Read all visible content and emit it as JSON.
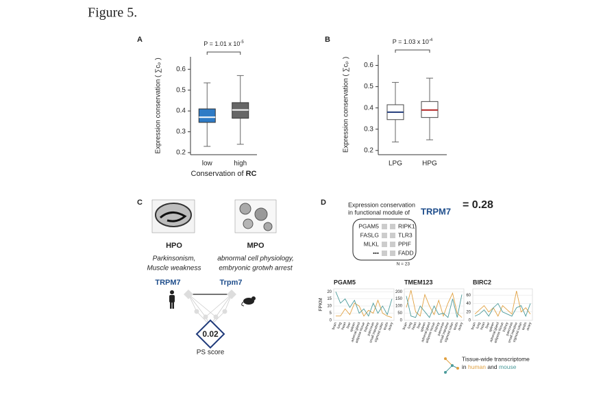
{
  "figure_title": "Figure 5.",
  "chart_data": [
    {
      "type": "box",
      "panel_label": "A",
      "ylabel": "Expression conservation ( ∑cₚ )",
      "xlabel": "Conservation of",
      "xlabel_bold": "RC",
      "annotation": {
        "text": "P = 1.01 x 10",
        "exponent": "-5"
      },
      "categories": [
        "low",
        "high"
      ],
      "boxes": [
        {
          "min": 0.23,
          "q1": 0.345,
          "median": 0.37,
          "q3": 0.41,
          "max": 0.535
        },
        {
          "min": 0.24,
          "q1": 0.365,
          "median": 0.405,
          "q3": 0.44,
          "max": 0.57
        }
      ],
      "box_colors": [
        "#2e7bc6",
        "#666666"
      ],
      "median_colors": [
        "#ffffff",
        "#ffffff"
      ],
      "edge_color": "#333333",
      "ylim": [
        0.19,
        0.66
      ],
      "yticks": [
        0.2,
        0.3,
        0.4,
        0.5,
        0.6
      ]
    },
    {
      "type": "box",
      "panel_label": "B",
      "ylabel": "Expression conservation ( ∑cₚ )",
      "annotation": {
        "text": "P = 1.03 x 10",
        "exponent": "-4"
      },
      "categories": [
        "LPG",
        "HPG"
      ],
      "boxes": [
        {
          "min": 0.24,
          "q1": 0.345,
          "median": 0.38,
          "q3": 0.415,
          "max": 0.52
        },
        {
          "min": 0.25,
          "q1": 0.355,
          "median": 0.39,
          "q3": 0.43,
          "max": 0.54
        }
      ],
      "box_colors": [
        "#ffffff",
        "#ffffff"
      ],
      "median_colors": [
        "#1f3a7a",
        "#b22222"
      ],
      "edge_color": "#444444",
      "ylim": [
        0.18,
        0.65
      ],
      "yticks": [
        0.2,
        0.3,
        0.4,
        0.5,
        0.6
      ]
    },
    {
      "type": "line",
      "title": "PGAM5",
      "ylabel": "FPKM",
      "categories": [
        "brain",
        "lung",
        "heart",
        "liver",
        "spleen",
        "adrenal gland",
        "adipose tissue",
        "kidney",
        "pancreas",
        "small intestine",
        "sigmoid colon",
        "testis",
        "ovary"
      ],
      "series": [
        {
          "name": "human",
          "color": "#e0a040",
          "values": [
            3,
            3,
            8,
            4,
            12,
            10,
            3,
            7,
            5,
            14,
            5,
            3,
            2
          ]
        },
        {
          "name": "mouse",
          "color": "#4a9a9a",
          "values": [
            20,
            12,
            15,
            9,
            14,
            5,
            8,
            3,
            12,
            5,
            10,
            4,
            15
          ]
        }
      ],
      "ylim": [
        0,
        22
      ],
      "yticks": [
        0,
        5,
        10,
        15,
        20
      ],
      "grid": true
    },
    {
      "type": "line",
      "title": "TMEM123",
      "categories": [
        "brain",
        "lung",
        "heart",
        "liver",
        "spleen",
        "adrenal gland",
        "adipose tissue",
        "kidney",
        "pancreas",
        "small intestine",
        "sigmoid colon",
        "testis",
        "ovary"
      ],
      "series": [
        {
          "name": "human",
          "color": "#e0a040",
          "values": [
            90,
            210,
            60,
            30,
            180,
            100,
            40,
            140,
            30,
            120,
            190,
            50,
            20
          ]
        },
        {
          "name": "mouse",
          "color": "#4a9a9a",
          "values": [
            170,
            30,
            20,
            100,
            60,
            20,
            100,
            40,
            50,
            20,
            150,
            20,
            180
          ]
        }
      ],
      "ylim": [
        0,
        220
      ],
      "yticks": [
        0,
        50,
        100,
        150,
        200
      ],
      "grid": true
    },
    {
      "type": "line",
      "title": "BIRC2",
      "categories": [
        "brain",
        "lung",
        "heart",
        "liver",
        "spleen",
        "adrenal gland",
        "adipose tissue",
        "kidney",
        "pancreas",
        "small intestine",
        "sigmoid colon",
        "testis",
        "ovary"
      ],
      "series": [
        {
          "name": "human",
          "color": "#e0a040",
          "values": [
            15,
            25,
            35,
            20,
            30,
            10,
            35,
            25,
            15,
            70,
            20,
            30,
            15
          ]
        },
        {
          "name": "mouse",
          "color": "#4a9a9a",
          "values": [
            10,
            15,
            25,
            10,
            30,
            40,
            20,
            15,
            10,
            30,
            35,
            10,
            40
          ]
        }
      ],
      "ylim": [
        0,
        75
      ],
      "yticks": [
        0,
        20,
        40,
        60
      ],
      "grid": true
    }
  ],
  "panel_c": {
    "label": "C",
    "hpo": {
      "title": "HPO",
      "lines": [
        "Parkinsonism,",
        "Muscle weakness"
      ]
    },
    "mpo": {
      "title": "MPO",
      "lines": [
        "abnormal cell physiology,",
        "embryonic grotwh arrest"
      ]
    },
    "human_gene": "TRPM7",
    "mouse_gene": "Trpm7",
    "score": "0.02",
    "score_label": "PS score"
  },
  "panel_d": {
    "label": "D",
    "header": [
      "Expression conservation",
      "in functional module of"
    ],
    "gene": "TRPM7",
    "score": "= 0.28",
    "module": {
      "left": [
        "PGAM5",
        "FASLG",
        "MLKL",
        "•••"
      ],
      "right": [
        "RIPK1",
        "TLR3",
        "PPIF",
        "FADD"
      ],
      "n": "N = 23"
    },
    "legend": {
      "title": "Tissue-wide transcriptome",
      "in": "in",
      "and": "and"
    }
  }
}
